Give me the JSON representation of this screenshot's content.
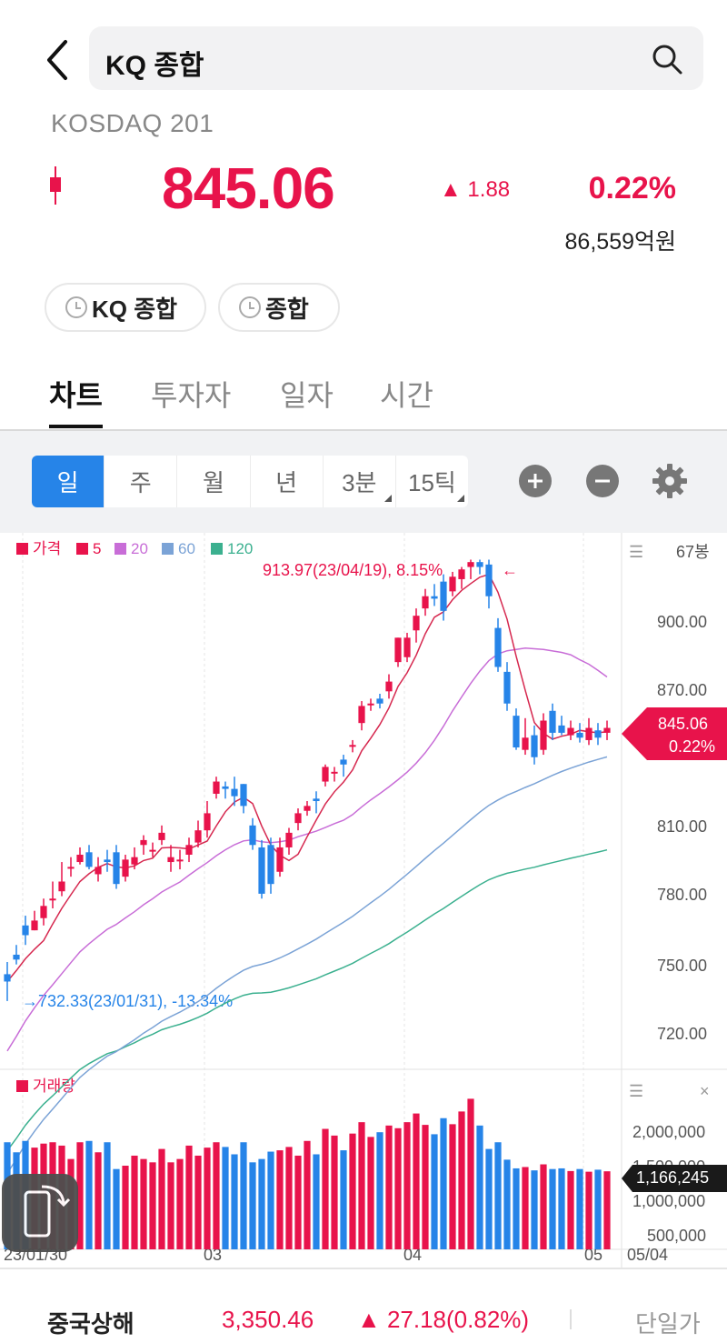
{
  "header": {
    "search_text": "KQ 종합",
    "subtitle": "KOSDAQ 201"
  },
  "quote": {
    "price": "845.06",
    "change": "▲ 1.88",
    "rate": "0.22%",
    "amount": "86,559억원"
  },
  "chips": [
    "KQ 종합",
    "종합"
  ],
  "tabs": [
    "차트",
    "투자자",
    "일자",
    "시간"
  ],
  "periods": [
    "일",
    "주",
    "월",
    "년",
    "3분",
    "15틱"
  ],
  "colors": {
    "up": "#e8134b",
    "down": "#2684e8",
    "ma5": "#d6284f",
    "ma20": "#c86dd7",
    "ma60": "#7ba3d6",
    "ma120": "#3bb08f"
  },
  "legend": {
    "price": "가격",
    "ma5": "5",
    "ma20": "20",
    "ma60": "60",
    "ma120": "120",
    "count": "67봉",
    "volume": "거래량"
  },
  "annotations": {
    "high": "913.97(23/04/19), 8.15%",
    "low": "732.33(23/01/31), -13.34%"
  },
  "price_axis": [
    "900.00",
    "870.00",
    "845.06",
    "810.00",
    "780.00",
    "750.00",
    "720.00"
  ],
  "volume_axis": [
    "2,000,000",
    "1,500,000",
    "1,000,000",
    "500,000"
  ],
  "date_axis": [
    "23/01/30",
    "03",
    "04",
    "05",
    "05/04"
  ],
  "price_tag": {
    "value": "845.06",
    "rate": "0.22%"
  },
  "volume_tag": "1,166,245",
  "ticker": {
    "name": "중국상해",
    "price": "3,350.46",
    "change": "▲ 27.18(0.82%)",
    "button": "단일가"
  },
  "chart_data": {
    "type": "candlestick",
    "ylim": [
      705,
      925
    ],
    "volume_ylim": [
      0,
      2500000
    ],
    "candles": [
      [
        744,
        741,
        733,
        749
      ],
      [
        752,
        750,
        748,
        756
      ],
      [
        764,
        760,
        756,
        768
      ],
      [
        762,
        766,
        762,
        770
      ],
      [
        767,
        772,
        764,
        775
      ],
      [
        775,
        775,
        771,
        782
      ],
      [
        778,
        782,
        776,
        790
      ],
      [
        788,
        788,
        784,
        792
      ],
      [
        790,
        793,
        789,
        796
      ],
      [
        794,
        788,
        787,
        797
      ],
      [
        785,
        788,
        782,
        792
      ],
      [
        791,
        790,
        786,
        795
      ],
      [
        794,
        781,
        779,
        797
      ],
      [
        784,
        791,
        782,
        793
      ],
      [
        789,
        792,
        787,
        796
      ],
      [
        797,
        799,
        793,
        801
      ],
      [
        795,
        795,
        792,
        798
      ],
      [
        799,
        802,
        797,
        805
      ],
      [
        790,
        792,
        786,
        797
      ],
      [
        791,
        791,
        787,
        795
      ],
      [
        793,
        797,
        790,
        800
      ],
      [
        798,
        803,
        796,
        807
      ],
      [
        803,
        810,
        800,
        815
      ],
      [
        818,
        823,
        816,
        825
      ],
      [
        821,
        820,
        816,
        823
      ],
      [
        820,
        817,
        813,
        825
      ],
      [
        822,
        813,
        810,
        822
      ],
      [
        805,
        797,
        795,
        808
      ],
      [
        796,
        777,
        775,
        799
      ],
      [
        797,
        781,
        777,
        800
      ],
      [
        786,
        796,
        784,
        800
      ],
      [
        796,
        802,
        793,
        804
      ],
      [
        806,
        810,
        803,
        812
      ],
      [
        811,
        813,
        809,
        815
      ],
      [
        816,
        815,
        810,
        819
      ],
      [
        823,
        829,
        821,
        830
      ],
      [
        827,
        827,
        823,
        829
      ],
      [
        832,
        830,
        825,
        834
      ],
      [
        838,
        838,
        835,
        840
      ],
      [
        847,
        854,
        844,
        856
      ],
      [
        855,
        855,
        852,
        857
      ],
      [
        857,
        855,
        853,
        859
      ],
      [
        860,
        864,
        857,
        867
      ],
      [
        872,
        882,
        870,
        882
      ],
      [
        874,
        882,
        872,
        884
      ],
      [
        885,
        891,
        880,
        894
      ],
      [
        894,
        899,
        891,
        902
      ],
      [
        899,
        898,
        895,
        904
      ],
      [
        905,
        893,
        889,
        908
      ],
      [
        901,
        907,
        899,
        909
      ],
      [
        906,
        910,
        902,
        911
      ],
      [
        911,
        913,
        906,
        914
      ],
      [
        913,
        911,
        908,
        914
      ],
      [
        912,
        899,
        894,
        914
      ],
      [
        886,
        870,
        868,
        890
      ],
      [
        868,
        855,
        852,
        872
      ],
      [
        850,
        837,
        836,
        853
      ],
      [
        836,
        841,
        834,
        849
      ],
      [
        842,
        833,
        830,
        846
      ],
      [
        836,
        848,
        834,
        851
      ],
      [
        852,
        843,
        840,
        855
      ],
      [
        846,
        843,
        842,
        850
      ],
      [
        842,
        845,
        840,
        848
      ],
      [
        843,
        841,
        839,
        847
      ],
      [
        840,
        845,
        838,
        849
      ],
      [
        844,
        841,
        838,
        847
      ],
      [
        843,
        845,
        840,
        848
      ]
    ],
    "volume": [
      1600000,
      1450000,
      1620000,
      1520000,
      1580000,
      1600000,
      1550000,
      1350000,
      1600000,
      1620000,
      1450000,
      1600000,
      1200000,
      1250000,
      1400000,
      1350000,
      1300000,
      1500000,
      1300000,
      1350000,
      1550000,
      1400000,
      1520000,
      1600000,
      1530000,
      1420000,
      1600000,
      1300000,
      1350000,
      1460000,
      1480000,
      1530000,
      1400000,
      1620000,
      1420000,
      1800000,
      1700000,
      1480000,
      1730000,
      1900000,
      1680000,
      1750000,
      1850000,
      1810000,
      1900000,
      2030000,
      1860000,
      1720000,
      1960000,
      1870000,
      2060000,
      2250000,
      1850000,
      1500000,
      1600000,
      1340000,
      1210000,
      1230000,
      1180000,
      1270000,
      1200000,
      1210000,
      1170000,
      1200000,
      1160000,
      1190000,
      1166245
    ]
  }
}
